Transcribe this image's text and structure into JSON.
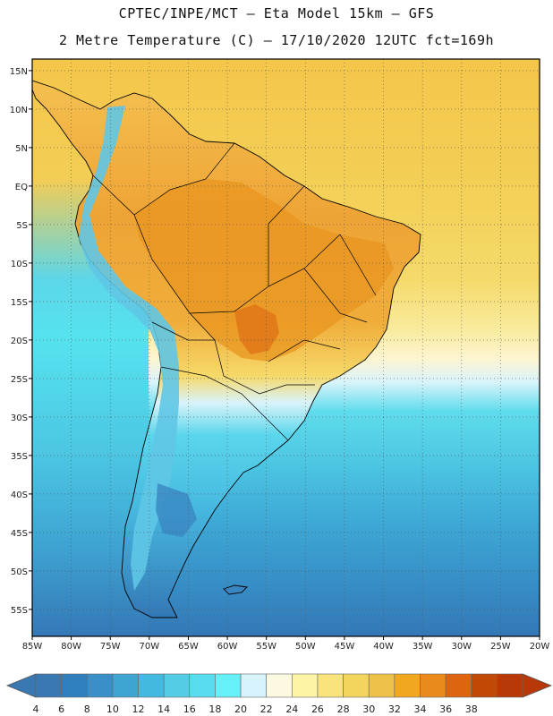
{
  "header": {
    "line1": "CPTEC/INPE/MCT –  Eta Model 15km – GFS",
    "line2": "2 Metre Temperature (C) – 17/10/2020 12UTC fct=169h"
  },
  "map": {
    "lon_labels": [
      "85W",
      "80W",
      "75W",
      "70W",
      "65W",
      "60W",
      "55W",
      "50W",
      "45W",
      "40W",
      "35W",
      "30W",
      "25W",
      "20W"
    ],
    "lat_labels": [
      "15N",
      "10N",
      "5N",
      "EQ",
      "5S",
      "10S",
      "15S",
      "20S",
      "25S",
      "30S",
      "35S",
      "40S",
      "45S",
      "50S",
      "55S"
    ],
    "lon_range_deg": [
      -85,
      -20
    ],
    "lat_range_deg": [
      16.5,
      -58.5
    ]
  },
  "colorbar": {
    "ticks": [
      "4",
      "6",
      "8",
      "10",
      "12",
      "14",
      "16",
      "18",
      "20",
      "22",
      "24",
      "26",
      "28",
      "30",
      "32",
      "34",
      "36",
      "38"
    ],
    "colors": [
      "#3a78b4",
      "#2f7fbf",
      "#3a8fc8",
      "#3ea4d2",
      "#44b9df",
      "#55cce6",
      "#5adcef",
      "#66f0f7",
      "#d7f3fb",
      "#fdf8e0",
      "#fdf4a6",
      "#f8e37c",
      "#f3d45d",
      "#eec14a",
      "#f1a820",
      "#ea8a1a",
      "#dd6510",
      "#c24805",
      "#b83808"
    ],
    "left_arrow_color": "#3a78b4",
    "right_arrow_color": "#b83808"
  }
}
